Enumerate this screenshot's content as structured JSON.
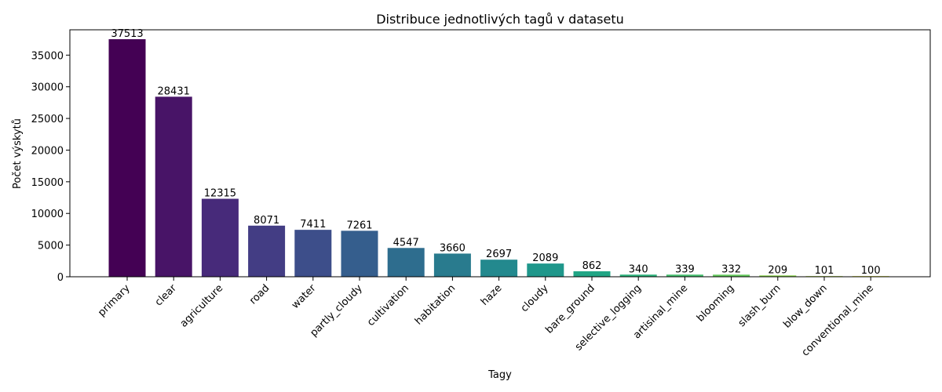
{
  "chart_data": {
    "type": "bar",
    "title": "Distribuce jednotlivých tagů v datasetu",
    "xlabel": "Tagy",
    "ylabel": "Počet výskytů",
    "categories": [
      "primary",
      "clear",
      "agriculture",
      "road",
      "water",
      "partly_cloudy",
      "cultivation",
      "habitation",
      "haze",
      "cloudy",
      "bare_ground",
      "selective_logging",
      "artisinal_mine",
      "blooming",
      "slash_burn",
      "blow_down",
      "conventional_mine"
    ],
    "values": [
      37513,
      28431,
      12315,
      8071,
      7411,
      7261,
      4547,
      3660,
      2697,
      2089,
      862,
      340,
      339,
      332,
      209,
      101,
      100
    ],
    "value_labels": [
      "37513",
      "28431",
      "12315",
      "8071",
      "7411",
      "7261",
      "4547",
      "3660",
      "2697",
      "2089",
      "862",
      "340",
      "339",
      "332",
      "209",
      "101",
      "100"
    ],
    "colors": [
      "#440154",
      "#481467",
      "#472a7a",
      "#433d84",
      "#3d4e8a",
      "#355e8d",
      "#2e6d8e",
      "#297b8e",
      "#23898e",
      "#1f978b",
      "#21a585",
      "#2eb37c",
      "#46c06f",
      "#65cb5e",
      "#89d548",
      "#b0dd2f",
      "#d8e219"
    ],
    "ylim": [
      0,
      39000
    ],
    "yticks": [
      0,
      5000,
      10000,
      15000,
      20000,
      25000,
      30000,
      35000
    ],
    "ytick_labels": [
      "0",
      "5000",
      "10000",
      "15000",
      "20000",
      "25000",
      "30000",
      "35000"
    ],
    "grid": false,
    "legend": "none"
  }
}
